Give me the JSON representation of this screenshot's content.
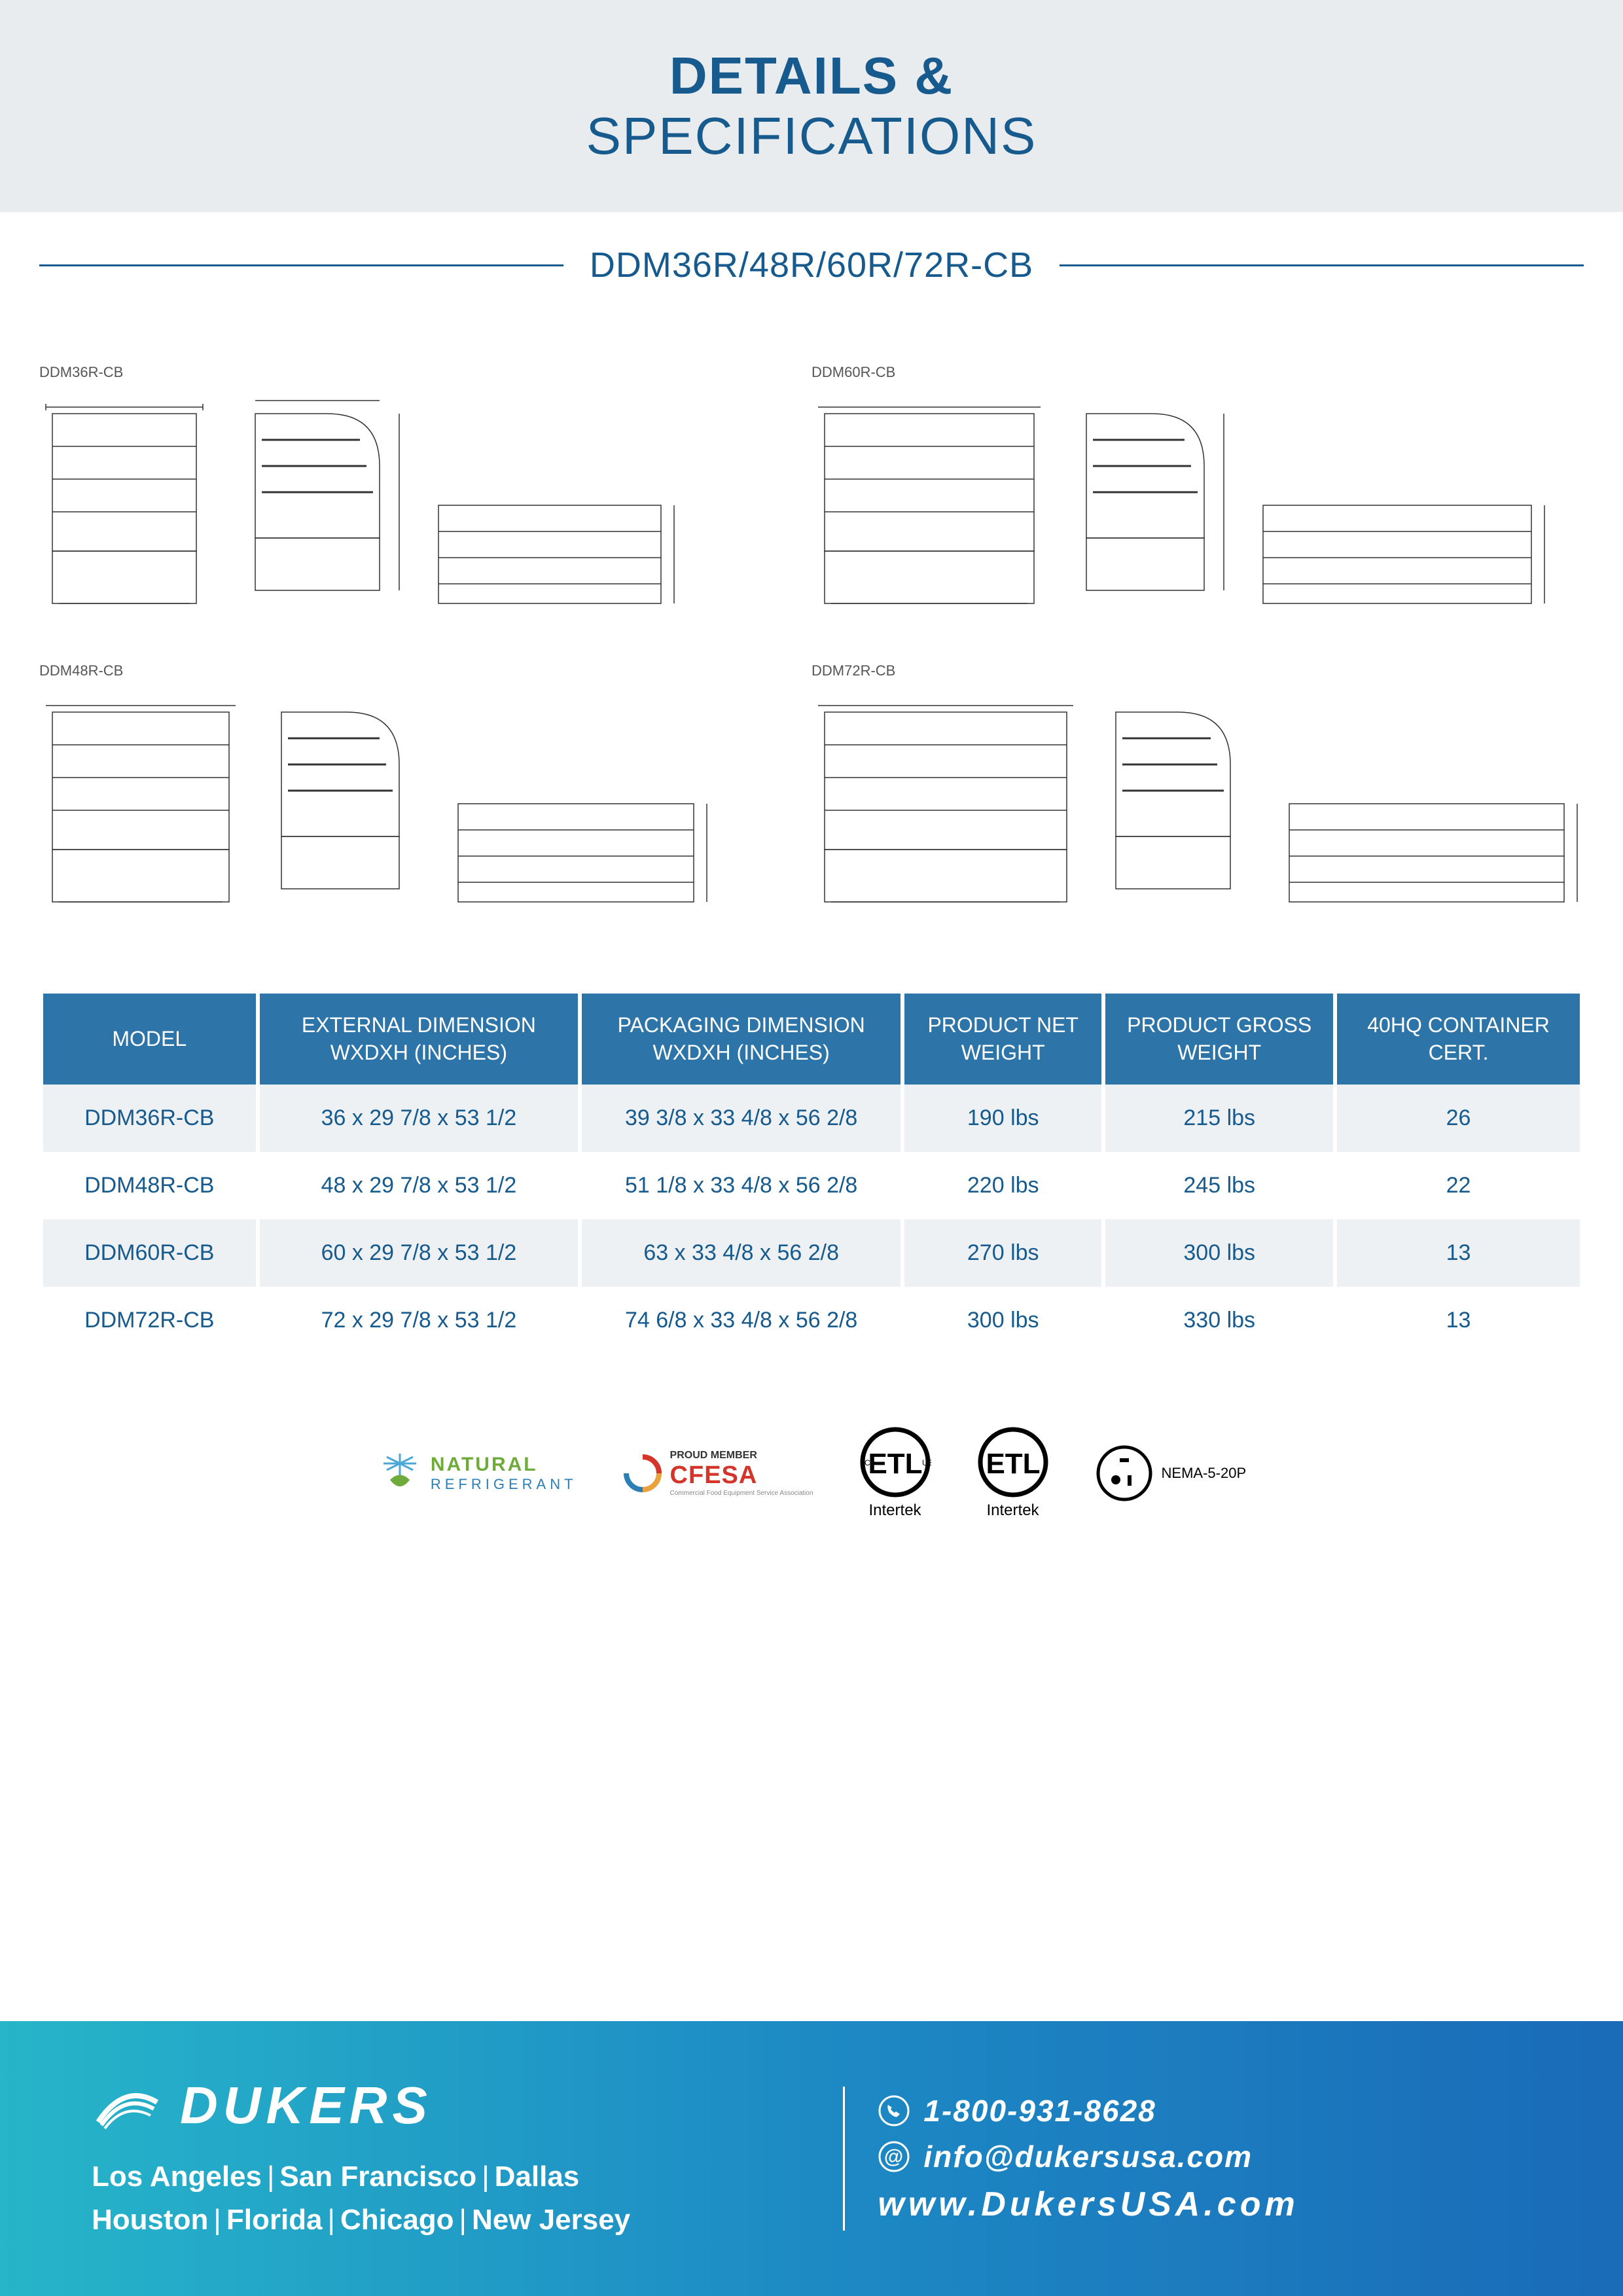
{
  "header": {
    "line1": "DETAILS &",
    "line2": "SPECIFICATIONS"
  },
  "subheader": "DDM36R/48R/60R/72R-CB",
  "diagram_labels": [
    "DDM36R-CB",
    "DDM60R-CB",
    "DDM48R-CB",
    "DDM72R-CB"
  ],
  "table": {
    "columns": [
      "MODEL",
      "EXTERNAL DIMENSION WXDXH (INCHES)",
      "PACKAGING DIMENSION WXDXH (INCHES)",
      "PRODUCT NET WEIGHT",
      "PRODUCT GROSS WEIGHT",
      "40HQ CONTAINER CERT."
    ],
    "rows": [
      [
        "DDM36R-CB",
        "36 x 29 7/8 x 53 1/2",
        "39 3/8 x 33 4/8 x 56 2/8",
        "190 lbs",
        "215 lbs",
        "26"
      ],
      [
        "DDM48R-CB",
        "48 x 29 7/8 x 53 1/2",
        "51 1/8 x 33 4/8 x 56 2/8",
        "220 lbs",
        "245 lbs",
        "22"
      ],
      [
        "DDM60R-CB",
        "60 x 29 7/8 x 53 1/2",
        "63 x 33 4/8 x 56 2/8",
        "270 lbs",
        "300 lbs",
        "13"
      ],
      [
        "DDM72R-CB",
        "72 x 29 7/8 x 53 1/2",
        "74 6/8 x 33 4/8 x 56 2/8",
        "300 lbs",
        "330 lbs",
        "13"
      ]
    ],
    "header_bg": "#2d74a8",
    "header_color": "#ffffff",
    "cell_color": "#165a8e",
    "row_odd_bg": "#edf1f4",
    "row_even_bg": "#ffffff"
  },
  "certifications": {
    "natural": {
      "line1": "NATURAL",
      "line2": "REFRIGERANT",
      "color1": "#6eab3a",
      "color2": "#2c7fb5"
    },
    "cfesa": {
      "top": "PROUD MEMBER",
      "main": "CFESA",
      "sub": "Commercial Food Equipment Service Association"
    },
    "etl1": "Intertek",
    "etl2": "Intertek",
    "nema": "NEMA-5-20P"
  },
  "footer": {
    "brand": "DUKERS",
    "locations_line1": [
      "Los Angeles",
      "San Francisco",
      "Dallas"
    ],
    "locations_line2": [
      "Houston",
      "Florida",
      "Chicago",
      "New Jersey"
    ],
    "phone": "1-800-931-8628",
    "email": "info@dukersusa.com",
    "web": "www.DukersUSA.com",
    "gradient_start": "#26b5c9",
    "gradient_end": "#1a6bb8"
  },
  "colors": {
    "primary": "#165a8e",
    "header_bg": "#e9ecef"
  }
}
